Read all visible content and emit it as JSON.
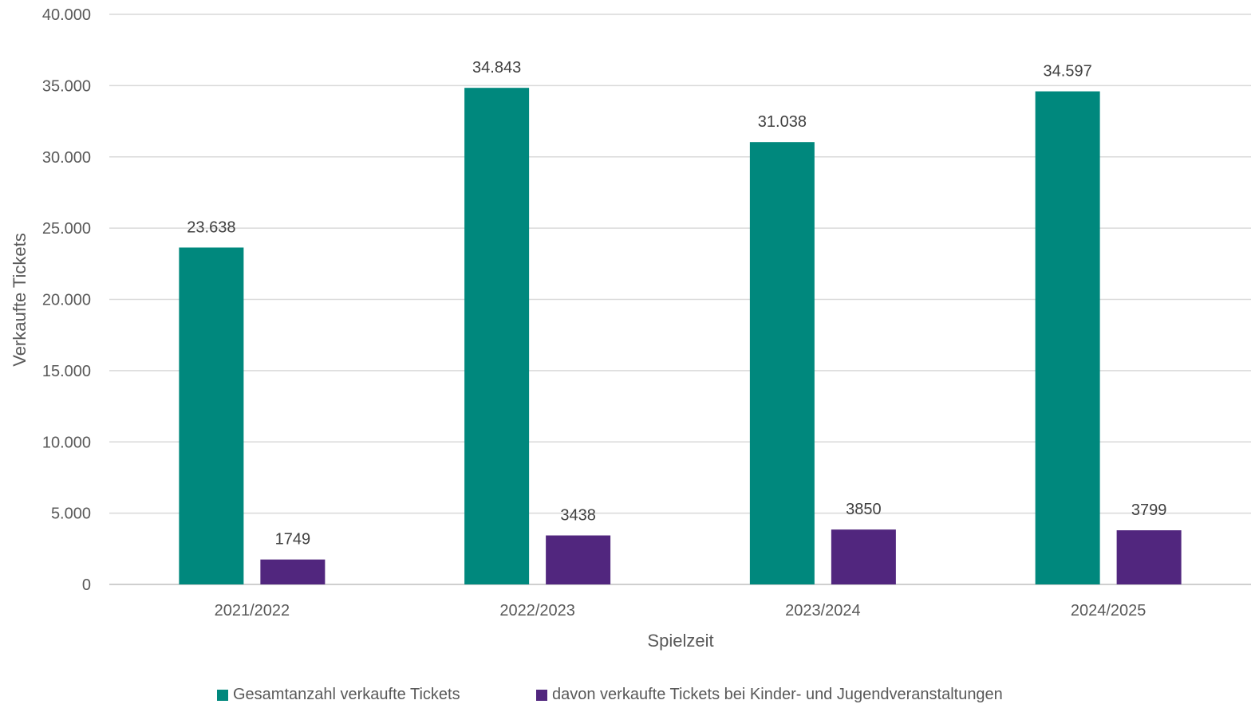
{
  "chart_data": {
    "type": "bar",
    "categories": [
      "2021/2022",
      "2022/2023",
      "2023/2024",
      "2024/2025"
    ],
    "series": [
      {
        "name": "Gesamtanzahl verkaufte Tickets",
        "values": [
          23638,
          34843,
          31038,
          34597
        ],
        "labels": [
          "23.638",
          "34.843",
          "31.038",
          "34.597"
        ],
        "color": "#00887D"
      },
      {
        "name": "davon verkaufte Tickets bei Kinder- und Jugendveranstaltungen",
        "values": [
          1749,
          3438,
          3850,
          3799
        ],
        "labels": [
          "1749",
          "3438",
          "3850",
          "3799"
        ],
        "color": "#51267E"
      }
    ],
    "xlabel": "Spielzeit",
    "ylabel": "Verkaufte Tickets",
    "ylim": [
      0,
      40000
    ],
    "yticks": [
      0,
      5000,
      10000,
      15000,
      20000,
      25000,
      30000,
      35000,
      40000
    ],
    "ytick_labels": [
      "0",
      "5.000",
      "10.000",
      "15.000",
      "20.000",
      "25.000",
      "30.000",
      "35.000",
      "40.000"
    ],
    "grid": true,
    "legend_position": "bottom"
  }
}
